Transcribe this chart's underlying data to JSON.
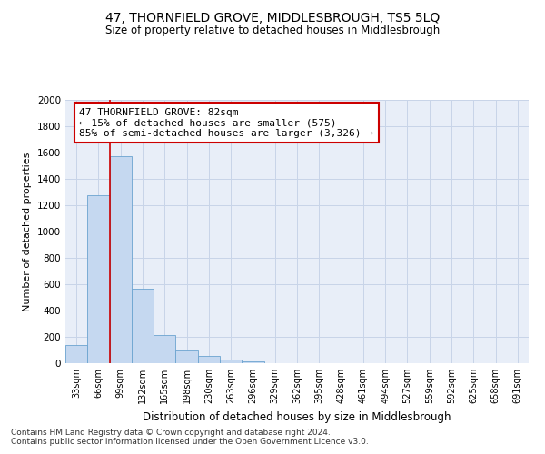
{
  "title": "47, THORNFIELD GROVE, MIDDLESBROUGH, TS5 5LQ",
  "subtitle": "Size of property relative to detached houses in Middlesbrough",
  "xlabel": "Distribution of detached houses by size in Middlesbrough",
  "ylabel": "Number of detached properties",
  "footer_line1": "Contains HM Land Registry data © Crown copyright and database right 2024.",
  "footer_line2": "Contains public sector information licensed under the Open Government Licence v3.0.",
  "bar_labels": [
    "33sqm",
    "66sqm",
    "99sqm",
    "132sqm",
    "165sqm",
    "198sqm",
    "230sqm",
    "263sqm",
    "296sqm",
    "329sqm",
    "362sqm",
    "395sqm",
    "428sqm",
    "461sqm",
    "494sqm",
    "527sqm",
    "559sqm",
    "592sqm",
    "625sqm",
    "658sqm",
    "691sqm"
  ],
  "bar_values": [
    140,
    1275,
    1575,
    565,
    215,
    95,
    52,
    30,
    15,
    0,
    0,
    0,
    0,
    0,
    0,
    0,
    0,
    0,
    0,
    0,
    0
  ],
  "bar_color": "#c5d8f0",
  "bar_edge_color": "#6ba3d0",
  "grid_color": "#c8d4e8",
  "background_color": "#e8eef8",
  "annotation_box_color": "#cc0000",
  "annotation_text_line1": "47 THORNFIELD GROVE: 82sqm",
  "annotation_text_line2": "← 15% of detached houses are smaller (575)",
  "annotation_text_line3": "85% of semi-detached houses are larger (3,326) →",
  "property_line_x": 1.5,
  "ylim": [
    0,
    2000
  ],
  "yticks": [
    0,
    200,
    400,
    600,
    800,
    1000,
    1200,
    1400,
    1600,
    1800,
    2000
  ]
}
